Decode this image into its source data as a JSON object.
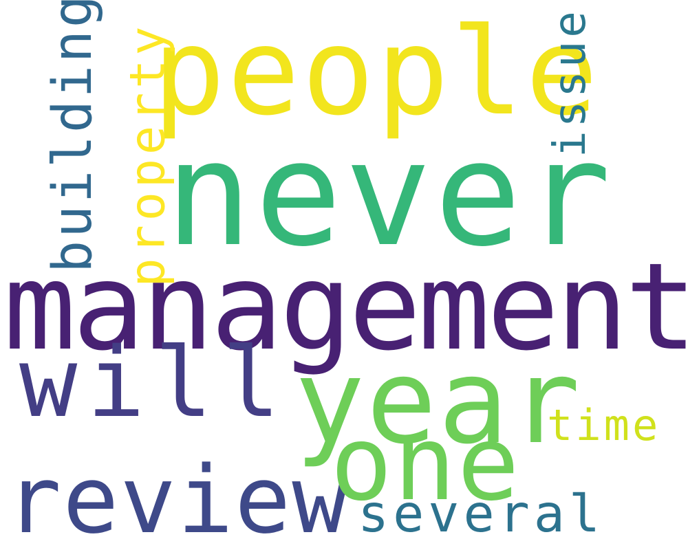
{
  "words": [
    {
      "text": "never",
      "color": "#35b779"
    },
    {
      "text": "management",
      "color": "#482173"
    },
    {
      "text": "people",
      "color": "#f2e51d"
    },
    {
      "text": "year",
      "color": "#6ece58"
    },
    {
      "text": "will",
      "color": "#433e85"
    },
    {
      "text": "review",
      "color": "#3e4989"
    },
    {
      "text": "one",
      "color": "#6ece58"
    },
    {
      "text": "several",
      "color": "#2c728e"
    },
    {
      "text": "time",
      "color": "#d0e11c"
    },
    {
      "text": "building",
      "color": "#31688e"
    },
    {
      "text": "property",
      "color": "#fde725"
    },
    {
      "text": "issue",
      "color": "#2a788e"
    }
  ]
}
